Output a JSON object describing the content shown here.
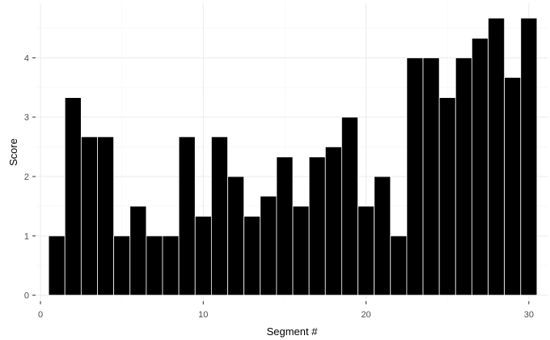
{
  "chart_data": {
    "type": "bar",
    "xlabel": "Segment #",
    "ylabel": "Score",
    "x": [
      1,
      2,
      3,
      4,
      5,
      6,
      7,
      8,
      9,
      10,
      11,
      12,
      13,
      14,
      15,
      16,
      17,
      18,
      19,
      20,
      21,
      22,
      23,
      24,
      25,
      26,
      27,
      28,
      29,
      30
    ],
    "values": [
      1,
      3.33,
      2.67,
      2.67,
      1,
      1.5,
      1,
      1,
      2.67,
      1.33,
      2.67,
      2,
      1.33,
      1.67,
      2.33,
      1.5,
      2.33,
      2.5,
      3,
      1.5,
      2,
      1,
      4,
      4,
      3.33,
      4,
      4.33,
      4.67,
      3.67,
      4.67
    ],
    "xlim": [
      -0.3,
      31.2
    ],
    "ylim": [
      -0.1,
      4.92
    ],
    "x_ticks": [
      0,
      10,
      20,
      30
    ],
    "y_ticks": [
      0,
      1,
      2,
      3,
      4
    ],
    "grid": true,
    "bar_color": "#000000",
    "bar_edge_color": "#ffffff"
  }
}
